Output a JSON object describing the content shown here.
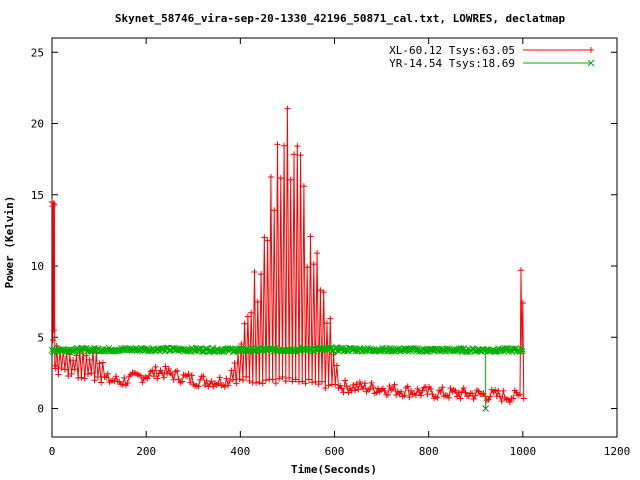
{
  "chart_data": {
    "type": "line",
    "title": "Skynet_58746_vira-sep-20-1330_42196_50871_cal.txt, LOWRES, declatmap",
    "xlabel": "Time(Seconds)",
    "ylabel": "Power (Kelvin)",
    "xlim": [
      0,
      1200
    ],
    "ylim": [
      -2,
      26
    ],
    "x_ticks": [
      0,
      200,
      400,
      600,
      800,
      1000,
      1200
    ],
    "y_ticks": [
      0,
      5,
      10,
      15,
      20,
      25
    ],
    "grid": false,
    "legend_position": "top-right",
    "series": [
      {
        "name": "XL-60.12 Tsys:63.05",
        "color": "#ff0000",
        "marker": "plus",
        "style": "oscillating",
        "segments": [
          {
            "x": [
              0,
              1,
              2,
              3,
              4,
              5,
              6,
              8
            ],
            "y": [
              14.5,
              14.2,
              4.8,
              14.4,
              5.5,
              14.3,
              3.0,
              2.8
            ],
            "note": "initial spike"
          },
          {
            "x": [
              994,
              996,
              998,
              1000,
              1002
            ],
            "y": [
              1.0,
              9.7,
              4.0,
              7.4,
              0.7
            ],
            "note": "final spike"
          }
        ],
        "baseline_y": [
          [
            10,
            2.6
          ],
          [
            50,
            2.4
          ],
          [
            100,
            2.1
          ],
          [
            150,
            1.9
          ],
          [
            230,
            2.6
          ],
          [
            300,
            2.0
          ],
          [
            350,
            1.9
          ],
          [
            400,
            2.1
          ],
          [
            480,
            2.0
          ],
          [
            600,
            1.6
          ],
          [
            700,
            1.4
          ],
          [
            800,
            1.1
          ],
          [
            900,
            1.0
          ],
          [
            1000,
            0.8
          ]
        ],
        "envelope_peak": [
          [
            380,
            3.0
          ],
          [
            400,
            4.5
          ],
          [
            420,
            8.0
          ],
          [
            440,
            12.0
          ],
          [
            460,
            16.0
          ],
          [
            480,
            19.5
          ],
          [
            495,
            21.5
          ],
          [
            510,
            21.0
          ],
          [
            530,
            17.5
          ],
          [
            550,
            14.5
          ],
          [
            570,
            10.5
          ],
          [
            590,
            6.5
          ],
          [
            610,
            3.0
          ]
        ],
        "early_bumps": [
          [
            10,
            5.4
          ],
          [
            20,
            4.8
          ],
          [
            30,
            5.5
          ],
          [
            40,
            4.8
          ],
          [
            60,
            5.3
          ],
          [
            80,
            4.5
          ],
          [
            90,
            5.3
          ],
          [
            100,
            4.6
          ]
        ]
      },
      {
        "name": "YR-14.54 Tsys:18.69",
        "color": "#00b000",
        "marker": "cross",
        "style": "flat",
        "points": [
          [
            0,
            4.1
          ],
          [
            200,
            4.15
          ],
          [
            400,
            4.1
          ],
          [
            600,
            4.15
          ],
          [
            800,
            4.1
          ],
          [
            920,
            4.1
          ],
          [
            921,
            0.0
          ],
          [
            922,
            4.1
          ],
          [
            1000,
            4.1
          ]
        ]
      }
    ]
  }
}
